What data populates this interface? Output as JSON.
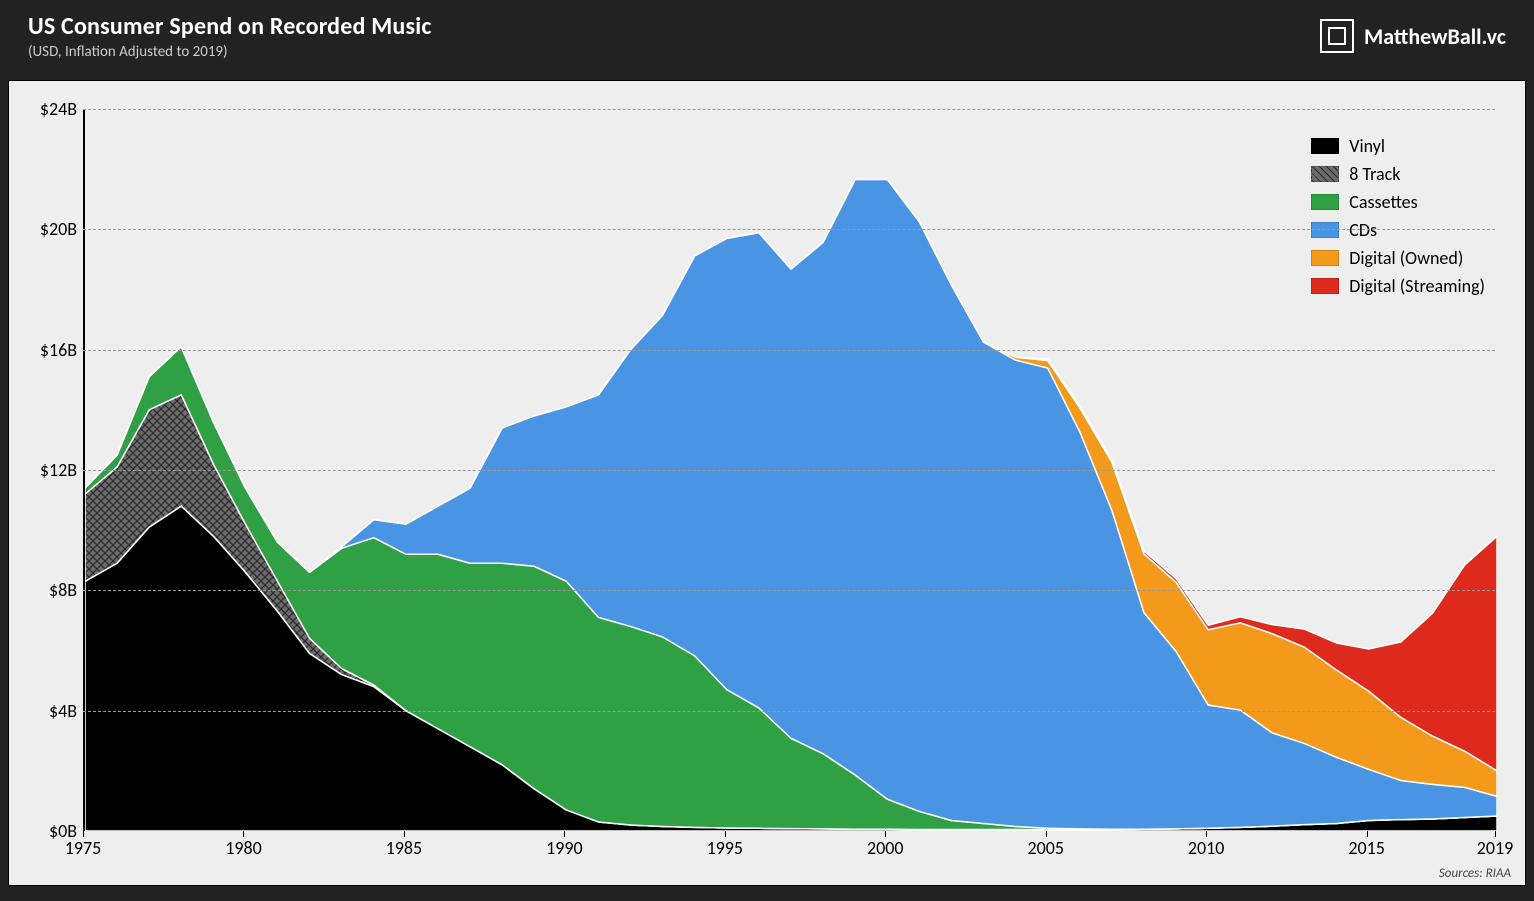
{
  "header": {
    "title": "US Consumer Spend on Recorded Music",
    "subtitle": "(USD, Inflation Adjusted to 2019)",
    "brand": "MatthewBall.vc"
  },
  "source": "Sources: RIAA",
  "chart": {
    "type": "stacked-area",
    "background_color": "#eeeeee",
    "grid_color": "#999999",
    "axis_color": "#000000",
    "separator_stroke": "#ffffff",
    "separator_width": 1.5,
    "xlim": [
      1975,
      2019
    ],
    "ylim": [
      0,
      24
    ],
    "y_ticks": [
      0,
      4,
      8,
      12,
      16,
      20,
      24
    ],
    "y_tick_labels": [
      "$0B",
      "$4B",
      "$8B",
      "$12B",
      "$16B",
      "$20B",
      "$24B"
    ],
    "x_ticks": [
      1975,
      1980,
      1985,
      1990,
      1995,
      2000,
      2005,
      2010,
      2015,
      2019
    ],
    "x_tick_labels": [
      "1975",
      "1980",
      "1985",
      "1990",
      "1995",
      "2000",
      "2005",
      "2010",
      "2015",
      "2019"
    ],
    "years": [
      1975,
      1976,
      1977,
      1978,
      1979,
      1980,
      1981,
      1982,
      1983,
      1984,
      1985,
      1986,
      1987,
      1988,
      1989,
      1990,
      1991,
      1992,
      1993,
      1994,
      1995,
      1996,
      1997,
      1998,
      1999,
      2000,
      2001,
      2002,
      2003,
      2004,
      2005,
      2006,
      2007,
      2008,
      2009,
      2010,
      2011,
      2012,
      2013,
      2014,
      2015,
      2016,
      2017,
      2018,
      2019
    ],
    "series": [
      {
        "name": "Vinyl",
        "color": "#000000",
        "pattern": "solid",
        "values": [
          8.3,
          8.9,
          10.1,
          10.8,
          9.8,
          8.6,
          7.3,
          5.9,
          5.2,
          4.8,
          4.0,
          3.4,
          2.8,
          2.2,
          1.4,
          0.7,
          0.3,
          0.2,
          0.15,
          0.12,
          0.1,
          0.09,
          0.08,
          0.07,
          0.06,
          0.06,
          0.05,
          0.05,
          0.05,
          0.05,
          0.04,
          0.04,
          0.05,
          0.06,
          0.07,
          0.09,
          0.12,
          0.16,
          0.21,
          0.25,
          0.35,
          0.38,
          0.4,
          0.45,
          0.5
        ]
      },
      {
        "name": "8 Track",
        "color": "#8b8b8b",
        "pattern": "crosshatch",
        "values": [
          2.9,
          3.2,
          3.9,
          3.7,
          2.4,
          1.6,
          1.0,
          0.5,
          0.2,
          0.05,
          0,
          0,
          0,
          0,
          0,
          0,
          0,
          0,
          0,
          0,
          0,
          0,
          0,
          0,
          0,
          0,
          0,
          0,
          0,
          0,
          0,
          0,
          0,
          0,
          0,
          0,
          0,
          0,
          0,
          0,
          0,
          0,
          0,
          0,
          0
        ]
      },
      {
        "name": "Cassettes",
        "color": "#2fa043",
        "pattern": "solid",
        "values": [
          0.2,
          0.4,
          1.1,
          1.6,
          1.4,
          1.2,
          1.3,
          2.2,
          4.0,
          4.9,
          5.2,
          5.8,
          6.1,
          6.7,
          7.4,
          7.6,
          6.8,
          6.6,
          6.3,
          5.7,
          4.6,
          4.0,
          3.0,
          2.5,
          1.8,
          1.0,
          0.6,
          0.3,
          0.2,
          0.1,
          0.05,
          0.03,
          0.01,
          0,
          0,
          0,
          0,
          0,
          0,
          0,
          0,
          0,
          0,
          0,
          0
        ]
      },
      {
        "name": "CDs",
        "color": "#4a95e3",
        "pattern": "solid",
        "values": [
          0,
          0,
          0,
          0,
          0,
          0,
          0,
          0,
          0.05,
          0.6,
          1.0,
          1.6,
          2.5,
          4.5,
          5.0,
          5.8,
          7.4,
          9.2,
          10.7,
          13.3,
          15.0,
          15.8,
          15.6,
          17.0,
          19.8,
          20.6,
          19.6,
          17.8,
          16.0,
          15.5,
          15.3,
          13.2,
          10.6,
          7.2,
          5.9,
          4.1,
          3.9,
          3.1,
          2.7,
          2.2,
          1.7,
          1.3,
          1.15,
          1.0,
          0.65
        ]
      },
      {
        "name": "Digital (Owned)",
        "color": "#f39a1d",
        "pattern": "solid",
        "values": [
          0,
          0,
          0,
          0,
          0,
          0,
          0,
          0,
          0,
          0,
          0,
          0,
          0,
          0,
          0,
          0,
          0,
          0,
          0,
          0,
          0,
          0,
          0,
          0,
          0,
          0,
          0,
          0,
          0,
          0.1,
          0.25,
          0.8,
          1.6,
          1.95,
          2.3,
          2.5,
          2.9,
          3.3,
          3.2,
          2.9,
          2.6,
          2.1,
          1.6,
          1.2,
          0.85
        ]
      },
      {
        "name": "Digital (Streaming)",
        "color": "#de2a1d",
        "pattern": "solid",
        "values": [
          0,
          0,
          0,
          0,
          0,
          0,
          0,
          0,
          0,
          0,
          0,
          0,
          0,
          0,
          0,
          0,
          0,
          0,
          0,
          0,
          0,
          0,
          0,
          0,
          0,
          0,
          0,
          0,
          0,
          0,
          0.05,
          0.07,
          0.09,
          0.1,
          0.12,
          0.15,
          0.2,
          0.3,
          0.6,
          0.9,
          1.4,
          2.5,
          4.1,
          6.2,
          7.8
        ]
      }
    ],
    "legend": {
      "position": "top-right",
      "font_size": 18,
      "items": [
        "Vinyl",
        "8 Track",
        "Cassettes",
        "CDs",
        "Digital (Owned)",
        "Digital (Streaming)"
      ]
    },
    "tick_font_size": 18,
    "title_font_size": 24
  }
}
